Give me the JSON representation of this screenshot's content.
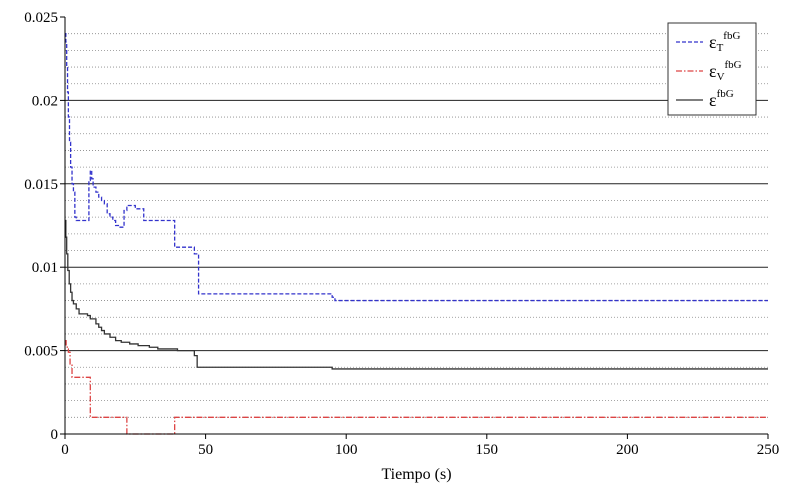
{
  "chart_data": {
    "type": "line",
    "title": "",
    "xlabel": "Tiempo (s)",
    "ylabel": "",
    "xlim": [
      0,
      250
    ],
    "ylim": [
      0,
      0.025
    ],
    "xticks": [
      0,
      50,
      100,
      150,
      200,
      250
    ],
    "xtick_labels": [
      "0",
      "50",
      "100",
      "150",
      "200",
      "250"
    ],
    "yticks": [
      0,
      0.005,
      0.01,
      0.015,
      0.02,
      0.025
    ],
    "ytick_labels": [
      "0",
      "0.005",
      "0.01",
      "0.015",
      "0.02",
      "0.025"
    ],
    "major_grid": true,
    "minor_grid": true,
    "legend_position": "top-right",
    "series": [
      {
        "name": "εT^fbG",
        "legend_base": "ε",
        "legend_sub": "T",
        "legend_sup": "fbG",
        "color": "#3333cc",
        "style": "dashed",
        "step": true,
        "x": [
          0,
          0.3,
          0.6,
          0.9,
          1.2,
          1.6,
          2,
          2.5,
          3,
          3.5,
          4,
          5,
          8,
          8.5,
          9,
          9.5,
          10,
          11,
          12,
          13,
          14,
          15,
          16,
          17,
          18,
          19,
          20,
          21,
          22,
          25,
          28,
          39,
          46,
          47.5,
          95,
          96,
          250
        ],
        "y": [
          0.024,
          0.0235,
          0.022,
          0.0205,
          0.019,
          0.0175,
          0.016,
          0.015,
          0.0145,
          0.013,
          0.0128,
          0.0128,
          0.0128,
          0.0152,
          0.0158,
          0.0153,
          0.0148,
          0.0145,
          0.0142,
          0.014,
          0.0138,
          0.0132,
          0.013,
          0.0128,
          0.0125,
          0.0124,
          0.0124,
          0.0134,
          0.0137,
          0.0135,
          0.0128,
          0.0112,
          0.0108,
          0.0084,
          0.0082,
          0.008,
          0.008
        ]
      },
      {
        "name": "εV^fbG",
        "legend_base": "ε",
        "legend_sub": "V",
        "legend_sup": "fbG",
        "color": "#dd4444",
        "style": "dashdot",
        "step": true,
        "x": [
          0,
          0.4,
          0.8,
          1.2,
          1.8,
          2.5,
          8,
          9,
          21.5,
          22,
          38.5,
          39,
          250
        ],
        "y": [
          0.0056,
          0.0053,
          0.0051,
          0.0049,
          0.0042,
          0.0034,
          0.0034,
          0.001,
          0.001,
          0.0,
          0.0,
          0.001,
          0.001
        ]
      },
      {
        "name": "ε^fbG",
        "legend_base": "ε",
        "legend_sub": "",
        "legend_sup": "fbG",
        "color": "#333333",
        "style": "solid",
        "step": true,
        "x": [
          0,
          0.3,
          0.6,
          1,
          1.5,
          2,
          2.5,
          3,
          4,
          5,
          7,
          8,
          9,
          11,
          12,
          13,
          14,
          16,
          18,
          20,
          23,
          26,
          30,
          33,
          35,
          40,
          46,
          47,
          95,
          250
        ],
        "y": [
          0.0128,
          0.0118,
          0.0108,
          0.0098,
          0.009,
          0.0085,
          0.008,
          0.0078,
          0.0075,
          0.0072,
          0.0072,
          0.0071,
          0.0069,
          0.0066,
          0.0064,
          0.0062,
          0.006,
          0.0058,
          0.0056,
          0.0055,
          0.0054,
          0.0053,
          0.0052,
          0.0051,
          0.0051,
          0.005,
          0.0047,
          0.004,
          0.0039,
          0.0039
        ]
      }
    ]
  }
}
